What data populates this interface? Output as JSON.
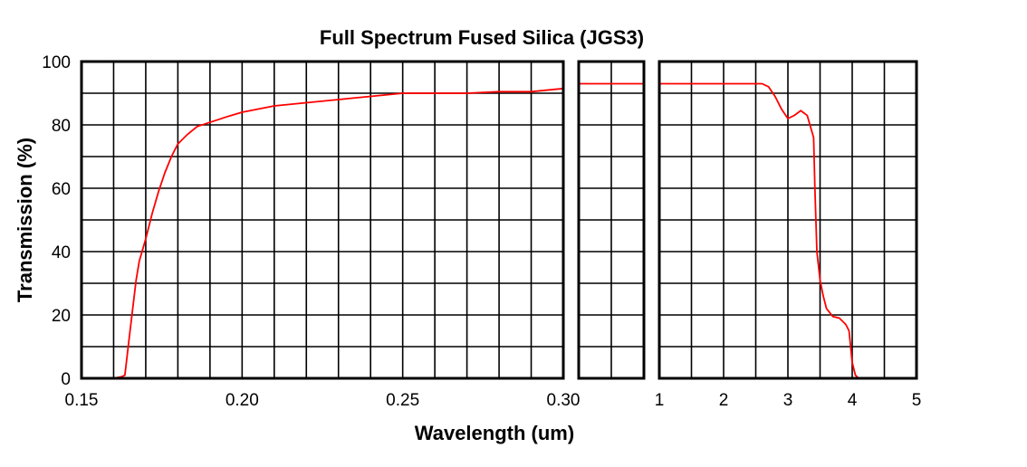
{
  "chart_data": {
    "type": "line",
    "title": "Full Spectrum Fused Silica (JGS3)",
    "xlabel": "Wavelength (um)",
    "ylabel": "Transmission (%)",
    "ylim": [
      0,
      100
    ],
    "yticks": [
      "0",
      "20",
      "40",
      "60",
      "80",
      "100"
    ],
    "grid": true,
    "panels": [
      {
        "name": "uv",
        "xlim": [
          0.15,
          0.3
        ],
        "xticks": [
          {
            "value": 0.15,
            "label": "0.15"
          },
          {
            "value": 0.2,
            "label": "0.20"
          },
          {
            "value": 0.25,
            "label": "0.25"
          },
          {
            "value": 0.3,
            "label": "0.30"
          }
        ],
        "x": [
          0.16,
          0.1625,
          0.1635,
          0.165,
          0.167,
          0.168,
          0.17,
          0.172,
          0.174,
          0.176,
          0.178,
          0.18,
          0.183,
          0.186,
          0.189,
          0.192,
          0.195,
          0.2,
          0.205,
          0.21,
          0.22,
          0.23,
          0.24,
          0.25,
          0.26,
          0.27,
          0.28,
          0.29,
          0.3
        ],
        "y": [
          0,
          0.5,
          1,
          14,
          31,
          37,
          44,
          52,
          59,
          65,
          70,
          74,
          77,
          79.5,
          80.5,
          81.5,
          82.5,
          84,
          85,
          86,
          87,
          88,
          89,
          90,
          90,
          90,
          90.5,
          90.5,
          91.5
        ]
      },
      {
        "name": "vis",
        "xlim": [
          0,
          1
        ],
        "xticks": [],
        "x": [
          0.0,
          1.0
        ],
        "y": [
          93,
          93
        ]
      },
      {
        "name": "ir",
        "xlim": [
          1,
          5
        ],
        "xticks": [
          {
            "value": 1,
            "label": "1"
          },
          {
            "value": 2,
            "label": "2"
          },
          {
            "value": 3,
            "label": "3"
          },
          {
            "value": 4,
            "label": "4"
          },
          {
            "value": 5,
            "label": "5"
          }
        ],
        "x": [
          1.0,
          2.0,
          2.5,
          2.6,
          2.7,
          2.8,
          2.9,
          3.0,
          3.1,
          3.2,
          3.3,
          3.4,
          3.42,
          3.45,
          3.5,
          3.55,
          3.6,
          3.7,
          3.8,
          3.9,
          3.95,
          4.0,
          4.05,
          4.1,
          4.2,
          4.3
        ],
        "y": [
          93,
          93,
          93,
          93,
          92,
          89,
          85,
          82,
          83,
          84.5,
          83,
          76,
          60,
          40,
          31,
          26,
          22,
          19.5,
          19,
          17,
          15,
          5,
          1,
          0,
          0,
          0
        ]
      }
    ]
  },
  "colors": {
    "curve": "#ff0000",
    "grid": "#000000",
    "background": "#ffffff"
  }
}
